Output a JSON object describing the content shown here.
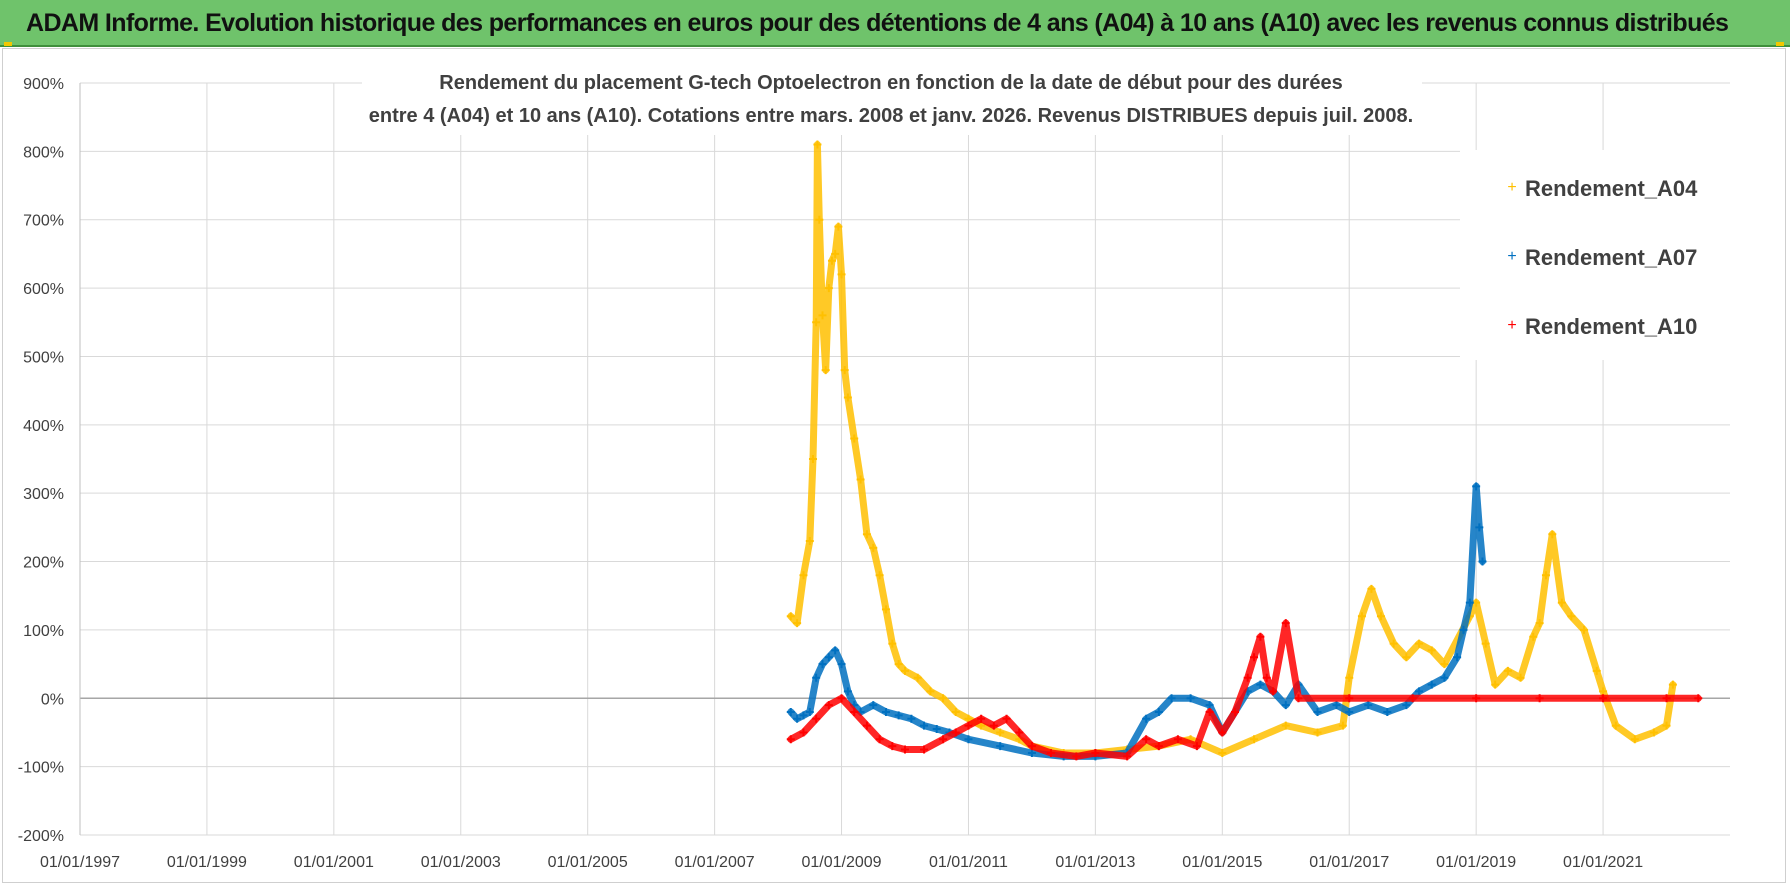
{
  "header": {
    "title": "ADAM Informe. Evolution historique des performances en euros pour des détentions de 4 ans (A04) à 10 ans (A10) avec les revenus connus distribués"
  },
  "chart_data": {
    "type": "scatter",
    "title_line1": "Rendement du placement G-tech Optoelectron  en fonction de la date de début pour des durées",
    "title_line2": "entre 4 (A04) et 10 ans (A10). Cotations entre mars. 2008 et janv. 2026. Revenus DISTRIBUES depuis juil. 2008.",
    "xlabel": "",
    "ylabel": "",
    "xlim": [
      1997.0,
      2023.0
    ],
    "ylim": [
      -200,
      900
    ],
    "y_ticks": [
      -200,
      -100,
      0,
      100,
      200,
      300,
      400,
      500,
      600,
      700,
      800,
      900
    ],
    "y_tick_labels": [
      "-200%",
      "-100%",
      "0%",
      "100%",
      "200%",
      "300%",
      "400%",
      "500%",
      "600%",
      "700%",
      "800%",
      "900%"
    ],
    "x_ticks": [
      1997,
      1999,
      2001,
      2003,
      2005,
      2007,
      2009,
      2011,
      2013,
      2015,
      2017,
      2019,
      2021
    ],
    "x_tick_labels": [
      "01/01/1997",
      "01/01/1999",
      "01/01/2001",
      "01/01/2003",
      "01/01/2005",
      "01/01/2007",
      "01/01/2009",
      "01/01/2011",
      "01/01/2013",
      "01/01/2015",
      "01/01/2017",
      "01/01/2019",
      "01/01/2021"
    ],
    "grid": true,
    "legend_position": "top-right",
    "marker": "+",
    "series": [
      {
        "name": "Rendement_A04",
        "color": "#FFC000",
        "points": [
          [
            2008.2,
            120
          ],
          [
            2008.3,
            110
          ],
          [
            2008.4,
            180
          ],
          [
            2008.5,
            230
          ],
          [
            2008.55,
            350
          ],
          [
            2008.6,
            550
          ],
          [
            2008.62,
            810
          ],
          [
            2008.65,
            700
          ],
          [
            2008.7,
            560
          ],
          [
            2008.75,
            480
          ],
          [
            2008.8,
            600
          ],
          [
            2008.85,
            640
          ],
          [
            2008.9,
            650
          ],
          [
            2008.95,
            690
          ],
          [
            2009.0,
            620
          ],
          [
            2009.05,
            480
          ],
          [
            2009.1,
            440
          ],
          [
            2009.2,
            380
          ],
          [
            2009.3,
            320
          ],
          [
            2009.4,
            240
          ],
          [
            2009.5,
            220
          ],
          [
            2009.6,
            180
          ],
          [
            2009.7,
            130
          ],
          [
            2009.8,
            80
          ],
          [
            2009.9,
            50
          ],
          [
            2010.0,
            40
          ],
          [
            2010.2,
            30
          ],
          [
            2010.4,
            10
          ],
          [
            2010.6,
            0
          ],
          [
            2010.8,
            -20
          ],
          [
            2011.0,
            -30
          ],
          [
            2011.2,
            -40
          ],
          [
            2011.5,
            -50
          ],
          [
            2011.8,
            -60
          ],
          [
            2012.0,
            -70
          ],
          [
            2012.5,
            -80
          ],
          [
            2013.0,
            -80
          ],
          [
            2013.5,
            -75
          ],
          [
            2014.0,
            -70
          ],
          [
            2014.5,
            -60
          ],
          [
            2015.0,
            -80
          ],
          [
            2015.5,
            -60
          ],
          [
            2016.0,
            -40
          ],
          [
            2016.5,
            -50
          ],
          [
            2016.9,
            -40
          ],
          [
            2017.0,
            30
          ],
          [
            2017.2,
            120
          ],
          [
            2017.35,
            160
          ],
          [
            2017.5,
            120
          ],
          [
            2017.7,
            80
          ],
          [
            2017.9,
            60
          ],
          [
            2018.1,
            80
          ],
          [
            2018.3,
            70
          ],
          [
            2018.5,
            50
          ],
          [
            2018.9,
            120
          ],
          [
            2019.0,
            140
          ],
          [
            2019.15,
            80
          ],
          [
            2019.3,
            20
          ],
          [
            2019.5,
            40
          ],
          [
            2019.7,
            30
          ],
          [
            2019.9,
            90
          ],
          [
            2020.0,
            110
          ],
          [
            2020.1,
            180
          ],
          [
            2020.2,
            240
          ],
          [
            2020.35,
            140
          ],
          [
            2020.5,
            120
          ],
          [
            2020.7,
            100
          ],
          [
            2020.9,
            40
          ],
          [
            2021.0,
            10
          ],
          [
            2021.2,
            -40
          ],
          [
            2021.5,
            -60
          ],
          [
            2021.8,
            -50
          ],
          [
            2022.0,
            -40
          ],
          [
            2022.1,
            20
          ]
        ]
      },
      {
        "name": "Rendement_A07",
        "color": "#0070C0",
        "points": [
          [
            2008.2,
            -20
          ],
          [
            2008.3,
            -30
          ],
          [
            2008.4,
            -25
          ],
          [
            2008.5,
            -20
          ],
          [
            2008.6,
            30
          ],
          [
            2008.7,
            50
          ],
          [
            2008.8,
            60
          ],
          [
            2008.9,
            70
          ],
          [
            2009.0,
            50
          ],
          [
            2009.1,
            10
          ],
          [
            2009.2,
            -10
          ],
          [
            2009.3,
            -20
          ],
          [
            2009.5,
            -10
          ],
          [
            2009.7,
            -20
          ],
          [
            2009.9,
            -25
          ],
          [
            2010.1,
            -30
          ],
          [
            2010.3,
            -40
          ],
          [
            2010.5,
            -45
          ],
          [
            2010.7,
            -50
          ],
          [
            2011.0,
            -60
          ],
          [
            2011.5,
            -70
          ],
          [
            2012.0,
            -80
          ],
          [
            2012.5,
            -85
          ],
          [
            2013.0,
            -85
          ],
          [
            2013.5,
            -80
          ],
          [
            2013.8,
            -30
          ],
          [
            2014.0,
            -20
          ],
          [
            2014.2,
            0
          ],
          [
            2014.5,
            0
          ],
          [
            2014.8,
            -10
          ],
          [
            2015.0,
            -50
          ],
          [
            2015.2,
            -20
          ],
          [
            2015.4,
            10
          ],
          [
            2015.6,
            20
          ],
          [
            2015.8,
            10
          ],
          [
            2016.0,
            -10
          ],
          [
            2016.2,
            20
          ],
          [
            2016.5,
            -20
          ],
          [
            2016.8,
            -10
          ],
          [
            2017.0,
            -20
          ],
          [
            2017.3,
            -10
          ],
          [
            2017.6,
            -20
          ],
          [
            2017.9,
            -10
          ],
          [
            2018.1,
            10
          ],
          [
            2018.3,
            20
          ],
          [
            2018.5,
            30
          ],
          [
            2018.7,
            60
          ],
          [
            2018.8,
            100
          ],
          [
            2018.9,
            140
          ],
          [
            2019.0,
            310
          ],
          [
            2019.05,
            250
          ],
          [
            2019.1,
            200
          ]
        ]
      },
      {
        "name": "Rendement_A10",
        "color": "#FF0000",
        "points": [
          [
            2008.2,
            -60
          ],
          [
            2008.4,
            -50
          ],
          [
            2008.6,
            -30
          ],
          [
            2008.8,
            -10
          ],
          [
            2009.0,
            0
          ],
          [
            2009.2,
            -20
          ],
          [
            2009.4,
            -40
          ],
          [
            2009.6,
            -60
          ],
          [
            2009.8,
            -70
          ],
          [
            2010.0,
            -75
          ],
          [
            2010.3,
            -75
          ],
          [
            2010.6,
            -60
          ],
          [
            2010.8,
            -50
          ],
          [
            2011.0,
            -40
          ],
          [
            2011.2,
            -30
          ],
          [
            2011.4,
            -40
          ],
          [
            2011.6,
            -30
          ],
          [
            2011.8,
            -50
          ],
          [
            2012.0,
            -70
          ],
          [
            2012.3,
            -80
          ],
          [
            2012.7,
            -85
          ],
          [
            2013.0,
            -80
          ],
          [
            2013.5,
            -85
          ],
          [
            2013.8,
            -60
          ],
          [
            2014.0,
            -70
          ],
          [
            2014.3,
            -60
          ],
          [
            2014.6,
            -70
          ],
          [
            2014.8,
            -20
          ],
          [
            2015.0,
            -50
          ],
          [
            2015.2,
            -20
          ],
          [
            2015.4,
            30
          ],
          [
            2015.5,
            60
          ],
          [
            2015.6,
            90
          ],
          [
            2015.7,
            30
          ],
          [
            2015.8,
            10
          ],
          [
            2016.0,
            110
          ],
          [
            2016.2,
            0
          ],
          [
            2017.0,
            0
          ],
          [
            2018.0,
            0
          ],
          [
            2019.0,
            0
          ],
          [
            2020.0,
            0
          ],
          [
            2021.0,
            0
          ],
          [
            2022.0,
            0
          ],
          [
            2022.5,
            0
          ]
        ]
      }
    ]
  }
}
